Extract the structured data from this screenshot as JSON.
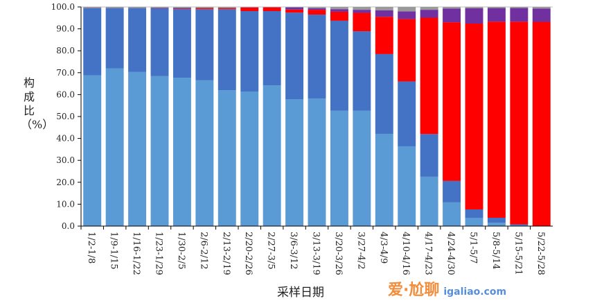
{
  "chart_data": {
    "type": "bar",
    "stacked": true,
    "title": "",
    "xlabel": "采样日期",
    "ylabel": "构成比（%）",
    "ylim": [
      0,
      100
    ],
    "yticks": [
      "0.0",
      "10.0",
      "20.0",
      "30.0",
      "40.0",
      "50.0",
      "60.0",
      "70.0",
      "80.0",
      "90.0",
      "100.0"
    ],
    "grid": false,
    "categories": [
      "1/2-1/8",
      "1/9-1/15",
      "1/16-1/22",
      "1/23-1/29",
      "1/30-2/5",
      "2/6-2/12",
      "2/13-2/19",
      "2/20-2/26",
      "2/27-3/5",
      "3/6-3/12",
      "3/13-3/19",
      "3/20-3/26",
      "3/27-4/2",
      "4/3-4/9",
      "4/10-4/16",
      "4/17-4/23",
      "4/24-4/30",
      "5/1-5/7",
      "5/8-5/14",
      "5/15-5/21",
      "5/22-5/28"
    ],
    "series": [
      {
        "color": "#5b9bd5",
        "values": [
          68.8,
          72.0,
          70.3,
          68.4,
          67.7,
          66.5,
          62.0,
          61.4,
          64.2,
          57.9,
          58.2,
          52.6,
          52.6,
          42.1,
          36.4,
          22.5,
          10.8,
          3.8,
          1.5,
          0.3,
          0.0
        ]
      },
      {
        "color": "#4472c4",
        "values": [
          30.6,
          27.5,
          29.2,
          30.8,
          31.3,
          32.5,
          37.0,
          36.7,
          33.9,
          39.5,
          38.3,
          41.1,
          36.3,
          36.4,
          29.6,
          19.5,
          9.8,
          3.8,
          2.3,
          0.5,
          0.1
        ]
      },
      {
        "color": "#ff0000",
        "values": [
          0,
          0,
          0,
          0,
          0.2,
          0.5,
          0.5,
          1.6,
          1.7,
          1.4,
          2.2,
          4.1,
          8.4,
          17.0,
          28.5,
          53.1,
          72.4,
          84.8,
          89.5,
          92.5,
          93.1
        ]
      },
      {
        "color": "#7030a0",
        "values": [
          0.1,
          0,
          0,
          0.3,
          0.3,
          0,
          0,
          0.1,
          0.1,
          1.0,
          0.7,
          1.2,
          1.4,
          3.0,
          3.5,
          3.6,
          6.3,
          7.0,
          6.2,
          6.2,
          6.1
        ]
      },
      {
        "color": "#999999",
        "values": [
          0.5,
          0.5,
          0.5,
          0.5,
          0.5,
          0.5,
          0.5,
          0.2,
          0.1,
          0.2,
          0.6,
          1.0,
          1.3,
          1.5,
          2.0,
          1.3,
          0.7,
          0.6,
          0.5,
          0.5,
          0.7
        ]
      }
    ]
  },
  "watermark": {
    "line1": "爱·尬聊",
    "line2": "igaliao.com"
  }
}
